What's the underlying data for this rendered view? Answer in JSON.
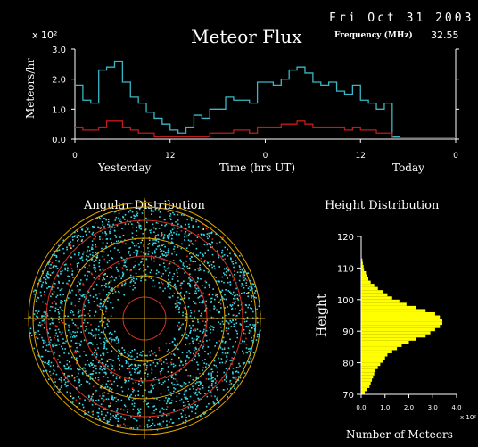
{
  "header": {
    "date": "Fri Oct 31 2003",
    "title": "Meteor Flux",
    "frequency_label": "Frequency (MHz)",
    "frequency_value": "32.55"
  },
  "colors": {
    "background": "#000000",
    "yesterday_series": "#3ab7c4",
    "today_series": "#c21a1a",
    "axis": "#ffffff",
    "histogram": "#ffff00",
    "circle_outer": "#e3a800",
    "circle_inner": "#d83020",
    "crosshair": "#d0a020",
    "dots": "#33d9e6"
  },
  "chart_data": [
    {
      "type": "line",
      "name": "meteor-flux",
      "ylabel": "Meteors/hr",
      "y_exponent": "x 10²",
      "xlabel": "Time (hrs UT)",
      "x_left_label": "Yesterday",
      "x_right_label": "Today",
      "x_tick_labels": [
        "0",
        "12",
        "0",
        "12",
        "0"
      ],
      "x_ticks": [
        0,
        12,
        24,
        36,
        48
      ],
      "y_tick_labels": [
        "0.0",
        "1.0",
        "2.0",
        "3.0"
      ],
      "y_ticks": [
        0,
        1,
        2,
        3
      ],
      "xlim": [
        0,
        48
      ],
      "ylim": [
        0,
        3
      ],
      "series": [
        {
          "x": [
            0,
            1,
            2,
            3,
            4,
            5,
            6,
            7,
            8,
            9,
            10,
            11,
            12,
            13,
            14,
            15,
            16,
            17,
            18,
            19,
            20,
            21,
            22,
            23,
            24,
            25,
            26,
            27,
            28,
            29,
            30,
            31,
            32,
            33,
            34,
            35,
            36,
            37,
            38,
            39,
            40
          ],
          "values": [
            1.8,
            1.3,
            1.2,
            2.3,
            2.4,
            2.6,
            1.9,
            1.4,
            1.2,
            0.9,
            0.7,
            0.5,
            0.3,
            0.2,
            0.4,
            0.8,
            0.7,
            1.0,
            1.0,
            1.4,
            1.3,
            1.3,
            1.2,
            1.9,
            1.9,
            1.8,
            2.0,
            2.3,
            2.4,
            2.2,
            1.9,
            1.8,
            1.9,
            1.6,
            1.5,
            1.8,
            1.3,
            1.2,
            1.0,
            1.2,
            0.1
          ]
        },
        {
          "x": [
            0,
            1,
            2,
            3,
            4,
            5,
            6,
            7,
            8,
            9,
            10,
            11,
            12,
            13,
            14,
            15,
            16,
            17,
            18,
            19,
            20,
            21,
            22,
            23,
            24,
            25,
            26,
            27,
            28,
            29,
            30,
            31,
            32,
            33,
            34,
            35,
            36,
            37,
            38,
            39,
            40
          ],
          "values": [
            0.4,
            0.3,
            0.3,
            0.4,
            0.6,
            0.6,
            0.4,
            0.3,
            0.2,
            0.2,
            0.1,
            0.1,
            0.1,
            0.1,
            0.1,
            0.1,
            0.1,
            0.2,
            0.2,
            0.2,
            0.3,
            0.3,
            0.2,
            0.4,
            0.4,
            0.4,
            0.5,
            0.5,
            0.6,
            0.5,
            0.4,
            0.4,
            0.4,
            0.4,
            0.3,
            0.4,
            0.3,
            0.3,
            0.2,
            0.2,
            0.05
          ]
        }
      ]
    },
    {
      "type": "scatter",
      "name": "angular-distribution",
      "title": "Angular Distribution"
    },
    {
      "type": "bar",
      "name": "height-distribution",
      "title": "Height Distribution",
      "ylabel": "Height",
      "xlabel": "Number of Meteors",
      "x_exponent": "x 10²",
      "x_tick_labels": [
        "0.0",
        "1.0",
        "2.0",
        "3.0",
        "4.0"
      ],
      "x_ticks": [
        0,
        1,
        2,
        3,
        4
      ],
      "y_tick_labels": [
        "70",
        "80",
        "90",
        "100",
        "110",
        "120"
      ],
      "y_ticks": [
        70,
        80,
        90,
        100,
        110,
        120
      ],
      "xlim": [
        0,
        4
      ],
      "ylim": [
        70,
        120
      ],
      "bins": [
        {
          "h": 70,
          "v": 0.15
        },
        {
          "h": 71,
          "v": 0.25
        },
        {
          "h": 72,
          "v": 0.35
        },
        {
          "h": 73,
          "v": 0.4
        },
        {
          "h": 74,
          "v": 0.45
        },
        {
          "h": 75,
          "v": 0.5
        },
        {
          "h": 76,
          "v": 0.55
        },
        {
          "h": 77,
          "v": 0.6
        },
        {
          "h": 78,
          "v": 0.7
        },
        {
          "h": 79,
          "v": 0.8
        },
        {
          "h": 80,
          "v": 0.9
        },
        {
          "h": 81,
          "v": 1.0
        },
        {
          "h": 82,
          "v": 1.1
        },
        {
          "h": 83,
          "v": 1.3
        },
        {
          "h": 84,
          "v": 1.5
        },
        {
          "h": 85,
          "v": 1.7
        },
        {
          "h": 86,
          "v": 2.0
        },
        {
          "h": 87,
          "v": 2.3
        },
        {
          "h": 88,
          "v": 2.7
        },
        {
          "h": 89,
          "v": 2.9
        },
        {
          "h": 90,
          "v": 3.1
        },
        {
          "h": 91,
          "v": 3.3
        },
        {
          "h": 92,
          "v": 3.4
        },
        {
          "h": 93,
          "v": 3.4
        },
        {
          "h": 94,
          "v": 3.3
        },
        {
          "h": 95,
          "v": 3.1
        },
        {
          "h": 96,
          "v": 2.7
        },
        {
          "h": 97,
          "v": 2.3
        },
        {
          "h": 98,
          "v": 1.9
        },
        {
          "h": 99,
          "v": 1.6
        },
        {
          "h": 100,
          "v": 1.3
        },
        {
          "h": 101,
          "v": 1.1
        },
        {
          "h": 102,
          "v": 0.9
        },
        {
          "h": 103,
          "v": 0.7
        },
        {
          "h": 104,
          "v": 0.55
        },
        {
          "h": 105,
          "v": 0.4
        },
        {
          "h": 106,
          "v": 0.3
        },
        {
          "h": 107,
          "v": 0.25
        },
        {
          "h": 108,
          "v": 0.2
        },
        {
          "h": 109,
          "v": 0.12
        },
        {
          "h": 110,
          "v": 0.1
        },
        {
          "h": 111,
          "v": 0.07
        },
        {
          "h": 112,
          "v": 0.05
        }
      ]
    }
  ]
}
